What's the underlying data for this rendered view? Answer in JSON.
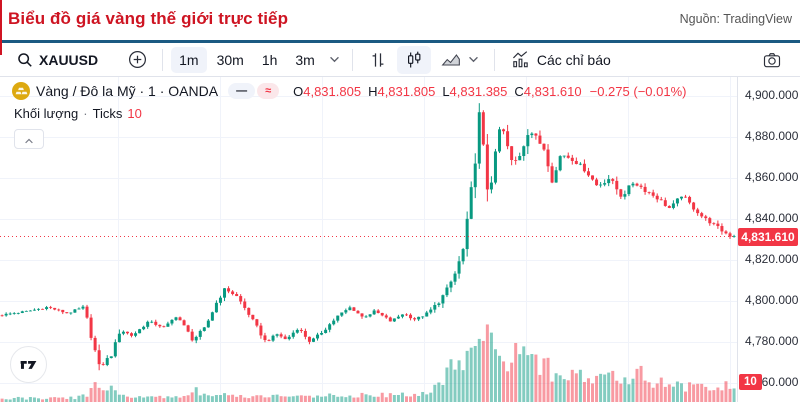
{
  "page": {
    "title": "Biểu đồ giá vàng thế giới trực tiếp",
    "source_label": "Nguồn: TradingView"
  },
  "toolbar": {
    "symbol": "XAUUSD",
    "intervals": [
      {
        "label": "1m",
        "active": true
      },
      {
        "label": "30m",
        "active": false
      },
      {
        "label": "1h",
        "active": false
      },
      {
        "label": "3m",
        "active": false
      }
    ],
    "indicators_label": "Các chỉ báo"
  },
  "legend": {
    "symbol_title": "Vàng / Đô la Mỹ · 1 · OANDA",
    "status_dash": "—",
    "status_approx": "≈",
    "ohlc": [
      {
        "k": "O",
        "v": "4,831.805"
      },
      {
        "k": "H",
        "v": "4,831.805"
      },
      {
        "k": "L",
        "v": "4,831.385"
      },
      {
        "k": "C",
        "v": "4,831.610"
      }
    ],
    "change": "−0.275 (−0.01%)",
    "volume_label": "Khối lượng",
    "volume_dot": "·",
    "volume_type": "Ticks",
    "volume_value": "10"
  },
  "price_scale": {
    "labels": [
      "4,900.000",
      "4,880.000",
      "4,860.000",
      "4,840.000",
      "4,820.000",
      "4,800.000",
      "4,780.000",
      "4,760.000"
    ],
    "current_price": "4,831.610",
    "volume_badge": "10"
  },
  "icons": [
    "search-icon",
    "add-symbol-icon",
    "chevron-down-icon",
    "bars-style-icon",
    "candles-style-icon",
    "area-style-icon",
    "indicators-icon",
    "camera-icon",
    "gold-coin-icon",
    "status-dash-badge",
    "status-approx-badge",
    "collapse-chevron-icon",
    "tradingview-logo"
  ],
  "chart_data": {
    "type": "candlestick+volume",
    "title": "Vàng / Đô la Mỹ · 1 · OANDA (XAU/USD, 1 minute)",
    "legend_position": "top-left",
    "grid": true,
    "x_axis_visible": false,
    "y_axis": {
      "side": "right",
      "ticks": [
        4900,
        4880,
        4860,
        4840,
        4820,
        4800,
        4780,
        4760
      ],
      "approx_range": [
        4752,
        4905
      ]
    },
    "current_price": 4831.61,
    "change": -0.275,
    "change_pct": -0.01,
    "last_tick_volume": 10,
    "candles_total": 182,
    "price_anchors": [
      [
        0,
        4793
      ],
      [
        7,
        4795
      ],
      [
        12,
        4797
      ],
      [
        17,
        4794
      ],
      [
        21,
        4797
      ],
      [
        23,
        4782
      ],
      [
        25,
        4766
      ],
      [
        26,
        4770
      ],
      [
        28,
        4774
      ],
      [
        30,
        4786
      ],
      [
        33,
        4783
      ],
      [
        37,
        4790
      ],
      [
        41,
        4787
      ],
      [
        44,
        4793
      ],
      [
        48,
        4781
      ],
      [
        51,
        4787
      ],
      [
        54,
        4800
      ],
      [
        56,
        4806
      ],
      [
        59,
        4802
      ],
      [
        62,
        4793
      ],
      [
        66,
        4780
      ],
      [
        69,
        4784
      ],
      [
        71,
        4781
      ],
      [
        74,
        4787
      ],
      [
        77,
        4780
      ],
      [
        80,
        4785
      ],
      [
        84,
        4793
      ],
      [
        87,
        4797
      ],
      [
        90,
        4792
      ],
      [
        93,
        4795
      ],
      [
        97,
        4790
      ],
      [
        100,
        4794
      ],
      [
        103,
        4791
      ],
      [
        106,
        4794
      ],
      [
        109,
        4800
      ],
      [
        111,
        4806
      ],
      [
        113,
        4814
      ],
      [
        115,
        4826
      ],
      [
        116,
        4840
      ],
      [
        117,
        4856
      ],
      [
        118,
        4874
      ],
      [
        119,
        4893
      ],
      [
        120,
        4868
      ],
      [
        121,
        4853
      ],
      [
        122,
        4861
      ],
      [
        123,
        4872
      ],
      [
        124,
        4886
      ],
      [
        125,
        4881
      ],
      [
        127,
        4866
      ],
      [
        129,
        4872
      ],
      [
        131,
        4884
      ],
      [
        133,
        4879
      ],
      [
        135,
        4874
      ],
      [
        137,
        4858
      ],
      [
        139,
        4872
      ],
      [
        142,
        4869
      ],
      [
        145,
        4864
      ],
      [
        148,
        4856
      ],
      [
        151,
        4860
      ],
      [
        154,
        4851
      ],
      [
        157,
        4858
      ],
      [
        160,
        4854
      ],
      [
        163,
        4850
      ],
      [
        166,
        4845
      ],
      [
        169,
        4852
      ],
      [
        171,
        4847
      ],
      [
        174,
        4841
      ],
      [
        177,
        4837
      ],
      [
        179,
        4834
      ],
      [
        181,
        4831.61
      ]
    ],
    "volume_anchors": [
      [
        0,
        0.07
      ],
      [
        10,
        0.06
      ],
      [
        18,
        0.08
      ],
      [
        21,
        0.12
      ],
      [
        24,
        0.32
      ],
      [
        27,
        0.25
      ],
      [
        30,
        0.12
      ],
      [
        36,
        0.08
      ],
      [
        45,
        0.1
      ],
      [
        48,
        0.2
      ],
      [
        51,
        0.1
      ],
      [
        55,
        0.14
      ],
      [
        60,
        0.09
      ],
      [
        70,
        0.1
      ],
      [
        80,
        0.11
      ],
      [
        90,
        0.12
      ],
      [
        100,
        0.12
      ],
      [
        106,
        0.16
      ],
      [
        109,
        0.35
      ],
      [
        112,
        0.75
      ],
      [
        116,
        0.95
      ],
      [
        120,
        1.0
      ],
      [
        124,
        0.85
      ],
      [
        128,
        0.75
      ],
      [
        132,
        0.65
      ],
      [
        136,
        0.55
      ],
      [
        140,
        0.45
      ],
      [
        144,
        0.4
      ],
      [
        148,
        0.38
      ],
      [
        152,
        0.45
      ],
      [
        156,
        0.35
      ],
      [
        158,
        0.65
      ],
      [
        160,
        0.4
      ],
      [
        164,
        0.3
      ],
      [
        168,
        0.28
      ],
      [
        172,
        0.25
      ],
      [
        176,
        0.2
      ],
      [
        179,
        0.28
      ],
      [
        181,
        0.22
      ]
    ],
    "colors": {
      "up": "#089981",
      "down": "#f23645",
      "volume_up": "rgba(8,153,129,0.5)",
      "volume_down": "rgba(242,54,69,0.5)",
      "price_line": "#f23645",
      "grid": "#f0f3fa"
    }
  }
}
